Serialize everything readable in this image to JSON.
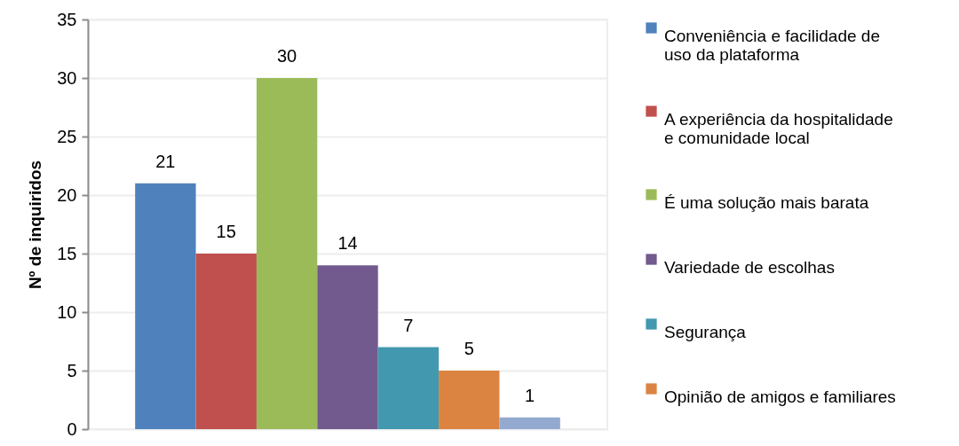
{
  "chart_data": {
    "type": "bar",
    "ylabel": "Nº de inquiridos",
    "categories": [
      null
    ],
    "series": [
      {
        "name": "Conveniência e facilidade de uso da plataforma",
        "color": "#4f81bd",
        "values": [
          21
        ]
      },
      {
        "name": "A experiência da hospitalidade e comunidade local",
        "color": "#c0504d",
        "values": [
          15
        ]
      },
      {
        "name": "É uma solução mais barata",
        "color": "#9bbb59",
        "values": [
          30
        ]
      },
      {
        "name": "Variedade de escolhas",
        "color": "#725a8f",
        "values": [
          14
        ]
      },
      {
        "name": "Segurança",
        "color": "#4298ae",
        "values": [
          7
        ]
      },
      {
        "name": "Opinião de amigos e familiares",
        "color": "#db8441",
        "values": [
          5
        ]
      },
      {
        "color": "#93a9d0",
        "values": [
          1
        ]
      }
    ],
    "ylim": [
      0,
      35
    ],
    "yticks": [
      0,
      5,
      10,
      15,
      20,
      25,
      30,
      35
    ],
    "grid": "y",
    "legend": "right",
    "data_labels": true
  }
}
